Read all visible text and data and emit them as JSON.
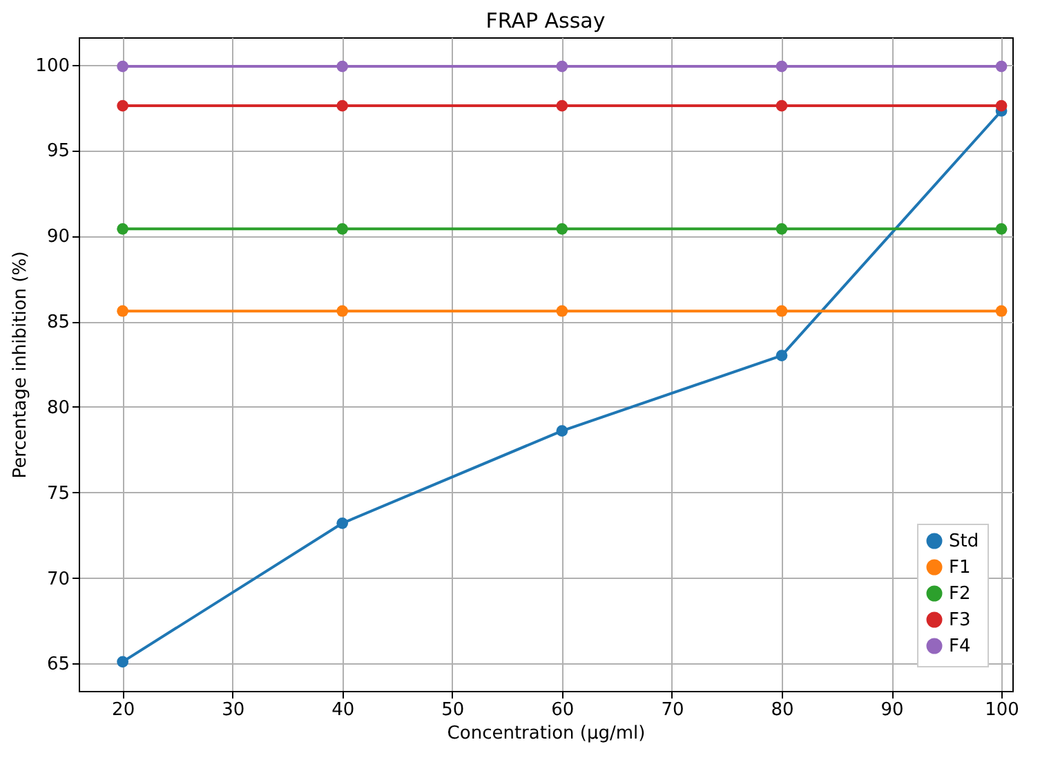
{
  "chart_data": {
    "type": "line",
    "title": "FRAP Assay",
    "xlabel": "Concentration (µg/ml)",
    "ylabel": "Percentage inhibition (%)",
    "x": [
      20,
      40,
      60,
      80,
      100
    ],
    "series": [
      {
        "name": "Std",
        "color": "#1f77b4",
        "values": [
          65.1,
          73.2,
          78.6,
          83.0,
          97.3
        ]
      },
      {
        "name": "F1",
        "color": "#ff7f0e",
        "values": [
          85.6,
          85.6,
          85.6,
          85.6,
          85.6
        ]
      },
      {
        "name": "F2",
        "color": "#2ca02c",
        "values": [
          90.4,
          90.4,
          90.4,
          90.4,
          90.4
        ]
      },
      {
        "name": "F3",
        "color": "#d62728",
        "values": [
          97.6,
          97.6,
          97.6,
          97.6,
          97.6
        ]
      },
      {
        "name": "F4",
        "color": "#9467bd",
        "values": [
          99.9,
          99.9,
          99.9,
          99.9,
          99.9
        ]
      }
    ],
    "xlim": [
      16,
      101
    ],
    "xticks": [
      20,
      30,
      40,
      50,
      60,
      70,
      80,
      90,
      100
    ],
    "ylim": [
      63.4,
      101.6
    ],
    "yticks": [
      65,
      70,
      75,
      80,
      85,
      90,
      95,
      100
    ],
    "grid": true,
    "legend": "bottom right",
    "marker": "circle",
    "line_style": "solid"
  }
}
